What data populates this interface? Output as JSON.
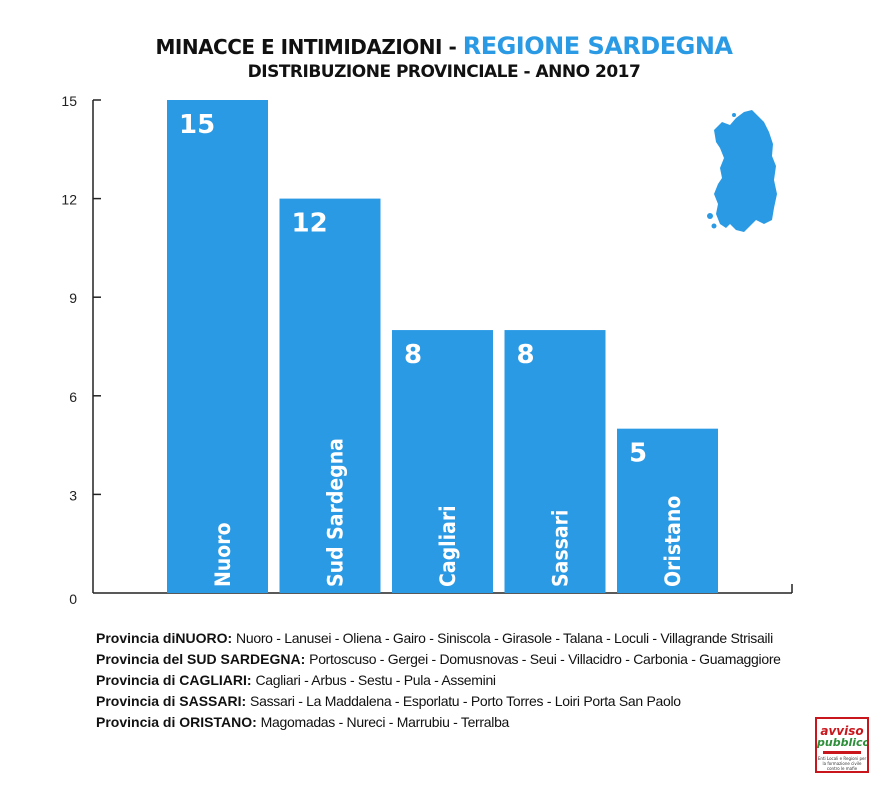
{
  "title": {
    "part1": "MINACCE E INTIMIDAZIONI - ",
    "part2": "REGIONE SARDEGNA",
    "subtitle": "DISTRIBUZIONE PROVINCIALE - ANNO 2017"
  },
  "colors": {
    "bar": "#2b9ae4",
    "accent": "#2b9ae4",
    "axis": "#222222"
  },
  "chart_data": {
    "type": "bar",
    "categories": [
      "Nuoro",
      "Sud Sardegna",
      "Cagliari",
      "Sassari",
      "Oristano"
    ],
    "values": [
      15,
      12,
      8,
      8,
      5
    ],
    "data_labels": [
      "15",
      "12",
      "8",
      "8",
      "5"
    ],
    "yticks": [
      "0",
      "3",
      "6",
      "9",
      "12",
      "15"
    ],
    "ylim": [
      0,
      15
    ],
    "grid": false,
    "legend": "none"
  },
  "notes": [
    {
      "label": "Provincia diNUORO:",
      "towns": "Nuoro - Lanusei - Oliena - Gairo - Siniscola - Girasole - Talana - Loculi - Villagrande Strisaili"
    },
    {
      "label": "Provincia del SUD SARDEGNA:",
      "towns": "Portoscuso - Gergei - Domusnovas - Seui - Villacidro - Carbonia - Guamaggiore"
    },
    {
      "label": "Provincia di CAGLIARI:",
      "towns": "Cagliari - Arbus - Sestu - Pula - Assemini"
    },
    {
      "label": "Provincia di SASSARI:",
      "towns": "Sassari - La Maddalena - Esporlatu - Porto Torres - Loiri Porta San Paolo"
    },
    {
      "label": "Provincia di ORISTANO:",
      "towns": "Magomadas - Nureci - Marrubiu - Terralba"
    }
  ],
  "logo": {
    "line1": "avviso",
    "line2": "pubblico",
    "tagline": "Enti Locali e Regioni per la formazione civile contro le mafie"
  },
  "map_icon": "sardinia-map-icon"
}
